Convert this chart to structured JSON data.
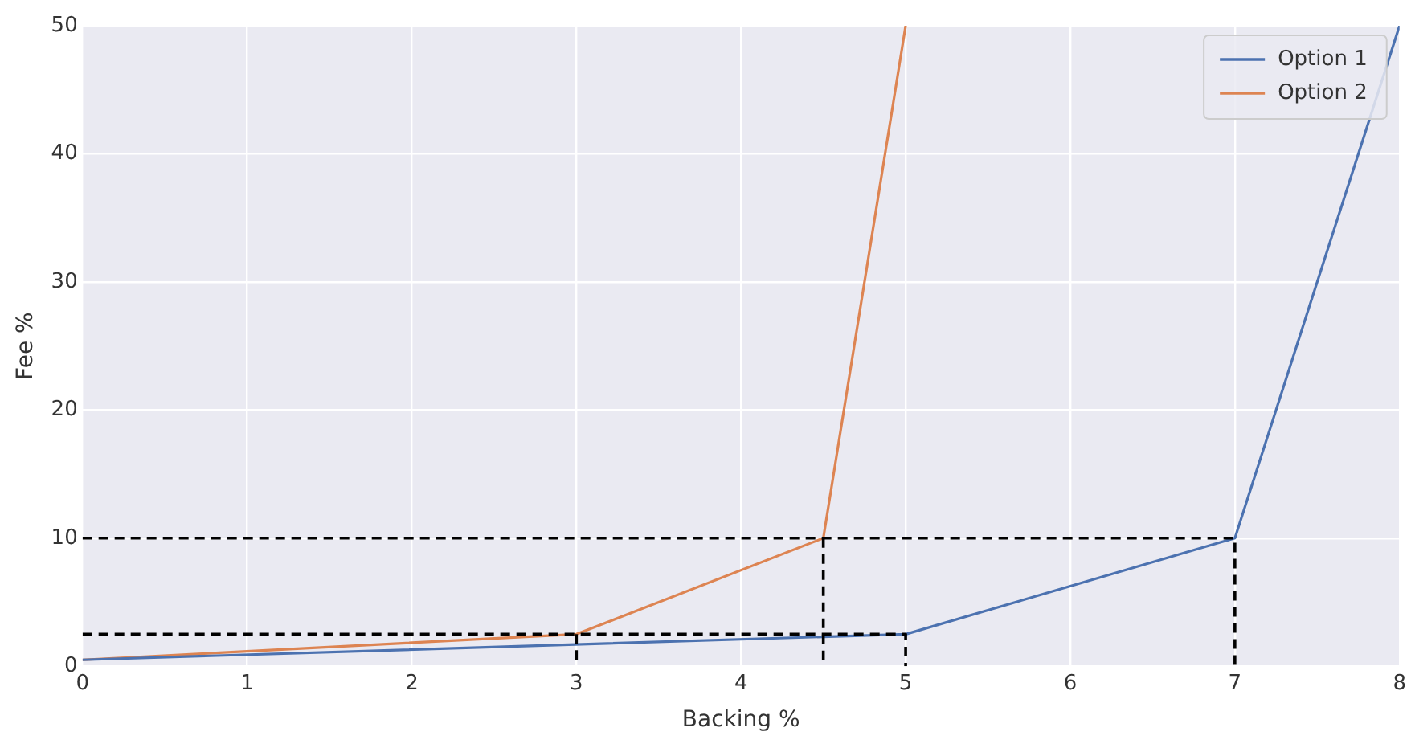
{
  "chart_data": {
    "type": "line",
    "xlabel": "Backing %",
    "ylabel": "Fee %",
    "xlim": [
      0,
      8
    ],
    "xticks": [
      0,
      1,
      2,
      3,
      4,
      5,
      6,
      7,
      8
    ],
    "ylim": [
      0,
      50
    ],
    "yticks": [
      0,
      10,
      20,
      30,
      40,
      50
    ],
    "grid": true,
    "legend": "top right",
    "marker": "none",
    "line_style": "solid",
    "series": [
      {
        "name": "Option 1",
        "color": "#4c72b0",
        "x": [
          0,
          5,
          7,
          8
        ],
        "values": [
          0.5,
          2.5,
          10,
          50
        ]
      },
      {
        "name": "Option 2",
        "color": "#dd8452",
        "x": [
          0,
          3,
          4.5,
          5
        ],
        "values": [
          0.5,
          2.5,
          10,
          50
        ]
      },
      {
        "color": "#000000",
        "line_style": "dashed",
        "x": [
          0,
          7,
          7
        ],
        "values": [
          10,
          10,
          0
        ]
      },
      {
        "color": "#000000",
        "line_style": "dashed",
        "x": [
          0,
          5,
          5
        ],
        "values": [
          2.5,
          2.5,
          0
        ]
      },
      {
        "color": "#000000",
        "line_style": "dashed",
        "x": [
          4.5,
          4.5
        ],
        "values": [
          10,
          0
        ]
      },
      {
        "color": "#000000",
        "line_style": "dashed",
        "x": [
          3,
          3
        ],
        "values": [
          2.5,
          0
        ]
      }
    ]
  }
}
